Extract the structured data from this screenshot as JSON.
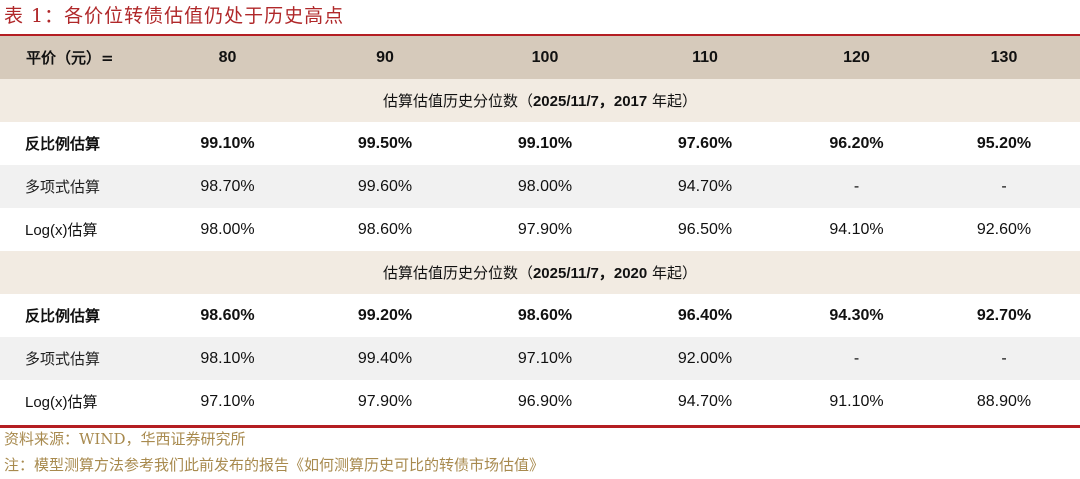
{
  "title": "表 1：各价位转债估值仍处于历史高点",
  "colors": {
    "accent_red": "#b41e22",
    "title_red": "#b0282a",
    "header_bg": "#d6cabb",
    "section_bg": "#f2ebe2",
    "alt_row_bg": "#f1f1f1",
    "footnote": "#a88a4e"
  },
  "table": {
    "header": {
      "label": "平价（元）=",
      "columns": [
        "80",
        "90",
        "100",
        "110",
        "120",
        "130"
      ]
    },
    "sections": [
      {
        "title_cn": "估算估值历史分位数（",
        "title_date": "2025/11/7，2017",
        "title_tail": " 年起）",
        "rows": [
          {
            "label": "反比例估算",
            "values": [
              "99.10%",
              "99.50%",
              "99.10%",
              "97.60%",
              "96.20%",
              "95.20%"
            ]
          },
          {
            "label": "多项式估算",
            "values": [
              "98.70%",
              "99.60%",
              "98.00%",
              "94.70%",
              "-",
              "-"
            ]
          },
          {
            "label": "Log(x)估算",
            "values": [
              "98.00%",
              "98.60%",
              "97.90%",
              "96.50%",
              "94.10%",
              "92.60%"
            ]
          }
        ]
      },
      {
        "title_cn": "估算估值历史分位数（",
        "title_date": "2025/11/7，2020",
        "title_tail": " 年起）",
        "rows": [
          {
            "label": "反比例估算",
            "values": [
              "98.60%",
              "99.20%",
              "98.60%",
              "96.40%",
              "94.30%",
              "92.70%"
            ]
          },
          {
            "label": "多项式估算",
            "values": [
              "98.10%",
              "99.40%",
              "97.10%",
              "92.00%",
              "-",
              "-"
            ]
          },
          {
            "label": "Log(x)估算",
            "values": [
              "97.10%",
              "97.90%",
              "96.90%",
              "94.70%",
              "91.10%",
              "88.90%"
            ]
          }
        ]
      }
    ]
  },
  "source": "资料来源：WIND，华西证券研究所",
  "note": "注：模型测算方法参考我们此前发布的报告《如何测算历史可比的转债市场估值》"
}
